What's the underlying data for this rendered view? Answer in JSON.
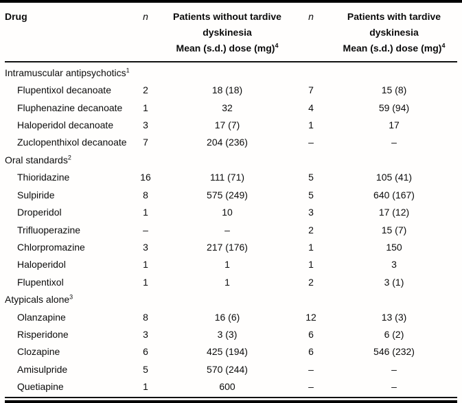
{
  "header": {
    "drug": "Drug",
    "n": "n",
    "without": {
      "line1": "Patients without tardive",
      "line2": "dyskinesia",
      "line3": "Mean (s.d.) dose (mg)",
      "sup": "4"
    },
    "with": {
      "line1": "Patients with tardive",
      "line2": "dyskinesia",
      "line3": "Mean (s.d.) dose (mg)",
      "sup": "4"
    }
  },
  "sections": [
    {
      "label": "Intramuscular antipsychotics",
      "sup": "1",
      "rows": [
        {
          "drug": "Flupentixol decanoate",
          "n1": "2",
          "dose1": "18 (18)",
          "n2": "7",
          "dose2": "15 (8)"
        },
        {
          "drug": "Fluphenazine decanoate",
          "n1": "1",
          "dose1": "32",
          "n2": "4",
          "dose2": "59 (94)"
        },
        {
          "drug": "Haloperidol decanoate",
          "n1": "3",
          "dose1": "17 (7)",
          "n2": "1",
          "dose2": "17"
        },
        {
          "drug": "Zuclopenthixol decanoate",
          "n1": "7",
          "dose1": "204 (236)",
          "n2": "–",
          "dose2": "–"
        }
      ]
    },
    {
      "label": "Oral standards",
      "sup": "2",
      "rows": [
        {
          "drug": "Thioridazine",
          "n1": "16",
          "dose1": "111 (71)",
          "n2": "5",
          "dose2": "105 (41)"
        },
        {
          "drug": "Sulpiride",
          "n1": "8",
          "dose1": "575 (249)",
          "n2": "5",
          "dose2": "640 (167)"
        },
        {
          "drug": "Droperidol",
          "n1": "1",
          "dose1": "10",
          "n2": "3",
          "dose2": "17 (12)"
        },
        {
          "drug": "Trifluoperazine",
          "n1": "–",
          "dose1": "–",
          "n2": "2",
          "dose2": "15 (7)"
        },
        {
          "drug": "Chlorpromazine",
          "n1": "3",
          "dose1": "217 (176)",
          "n2": "1",
          "dose2": "150"
        },
        {
          "drug": "Haloperidol",
          "n1": "1",
          "dose1": "1",
          "n2": "1",
          "dose2": "3"
        },
        {
          "drug": "Flupentixol",
          "n1": "1",
          "dose1": "1",
          "n2": "2",
          "dose2": "3 (1)"
        }
      ]
    },
    {
      "label": "Atypicals alone",
      "sup": "3",
      "rows": [
        {
          "drug": "Olanzapine",
          "n1": "8",
          "dose1": "16 (6)",
          "n2": "12",
          "dose2": "13 (3)"
        },
        {
          "drug": "Risperidone",
          "n1": "3",
          "dose1": "3 (3)",
          "n2": "6",
          "dose2": "6 (2)"
        },
        {
          "drug": "Clozapine",
          "n1": "6",
          "dose1": "425 (194)",
          "n2": "6",
          "dose2": "546 (232)"
        },
        {
          "drug": "Amisulpride",
          "n1": "5",
          "dose1": "570 (244)",
          "n2": "–",
          "dose2": "–"
        },
        {
          "drug": "Quetiapine",
          "n1": "1",
          "dose1": "600",
          "n2": "–",
          "dose2": "–"
        }
      ]
    }
  ]
}
